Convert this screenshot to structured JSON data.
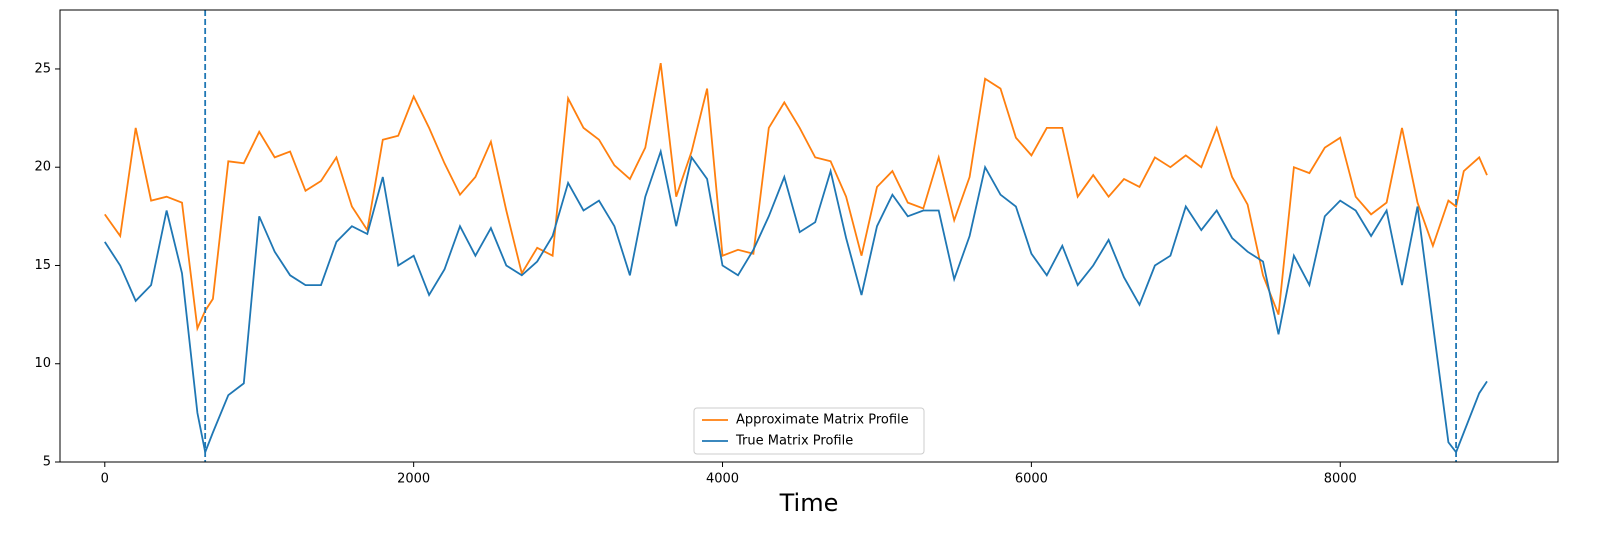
{
  "chart_data": {
    "type": "line",
    "xlabel": "Time",
    "x": [
      0,
      100,
      200,
      300,
      400,
      500,
      600,
      650,
      700,
      800,
      900,
      1000,
      1100,
      1200,
      1300,
      1400,
      1500,
      1600,
      1700,
      1800,
      1900,
      2000,
      2100,
      2200,
      2300,
      2400,
      2500,
      2600,
      2700,
      2800,
      2900,
      3000,
      3100,
      3200,
      3300,
      3400,
      3500,
      3600,
      3700,
      3800,
      3900,
      4000,
      4100,
      4200,
      4300,
      4400,
      4500,
      4600,
      4700,
      4800,
      4900,
      5000,
      5100,
      5200,
      5300,
      5400,
      5500,
      5600,
      5700,
      5800,
      5900,
      6000,
      6100,
      6200,
      6300,
      6400,
      6500,
      6600,
      6700,
      6800,
      6900,
      7000,
      7100,
      7200,
      7300,
      7400,
      7500,
      7600,
      7700,
      7800,
      7900,
      8000,
      8100,
      8200,
      8300,
      8400,
      8500,
      8600,
      8700,
      8750,
      8800,
      8900,
      8950
    ],
    "series": [
      {
        "name": "Approximate Matrix Profile",
        "color": "#ff7f0e",
        "values": [
          17.6,
          16.5,
          22,
          18.3,
          18.5,
          18.2,
          11.8,
          12.7,
          13.3,
          20.3,
          20.2,
          21.8,
          20.5,
          20.8,
          18.8,
          19.3,
          20.5,
          18,
          16.8,
          21.4,
          21.6,
          23.6,
          22,
          20.2,
          18.6,
          19.5,
          21.3,
          17.8,
          14.6,
          15.9,
          15.5,
          23.5,
          22,
          21.4,
          20.1,
          19.4,
          21,
          25.3,
          18.5,
          20.8,
          24,
          15.5,
          15.8,
          15.6,
          22,
          23.3,
          22,
          20.5,
          20.3,
          18.5,
          15.5,
          19,
          19.8,
          18.2,
          17.9,
          20.5,
          17.3,
          19.5,
          24.5,
          24,
          21.5,
          20.6,
          22,
          22,
          18.5,
          19.6,
          18.5,
          19.4,
          19,
          20.5,
          20,
          20.6,
          20,
          22,
          19.5,
          18.1,
          14.5,
          12.5,
          20,
          19.7,
          21,
          21.5,
          18.5,
          17.6,
          18.2,
          22,
          18.2,
          16,
          18.3,
          18,
          19.8,
          20.5,
          19.6
        ]
      },
      {
        "name": "True Matrix Profile",
        "color": "#1f77b4",
        "values": [
          16.2,
          15,
          13.2,
          14,
          17.8,
          14.6,
          7.5,
          5.5,
          6.5,
          8.4,
          9,
          17.5,
          15.7,
          14.5,
          14,
          14,
          16.2,
          17,
          16.6,
          19.5,
          15,
          15.5,
          13.5,
          14.8,
          17,
          15.5,
          16.9,
          15,
          14.5,
          15.2,
          16.5,
          19.2,
          17.8,
          18.3,
          17,
          14.5,
          18.5,
          20.8,
          17,
          20.5,
          19.4,
          15,
          14.5,
          15.8,
          17.5,
          19.5,
          16.7,
          17.2,
          19.8,
          16.4,
          13.5,
          17,
          18.6,
          17.5,
          17.8,
          17.8,
          14.3,
          16.5,
          20,
          18.6,
          18,
          15.6,
          14.5,
          16,
          14,
          15,
          16.3,
          14.4,
          13,
          15,
          15.5,
          18,
          16.8,
          17.8,
          16.4,
          15.7,
          15.2,
          11.5,
          15.5,
          14,
          17.5,
          18.3,
          17.8,
          16.5,
          17.8,
          14,
          18,
          12,
          6,
          5.5,
          6.5,
          8.5,
          9.1
        ]
      }
    ],
    "vlines": [
      650,
      8750
    ],
    "vline_color": "#1f77b4",
    "xlim": [
      -290,
      9410
    ],
    "ylim": [
      5,
      28
    ],
    "xticks": [
      0,
      2000,
      4000,
      6000,
      8000
    ],
    "yticks": [
      5,
      10,
      15,
      20,
      25
    ],
    "legend": "lower center"
  }
}
